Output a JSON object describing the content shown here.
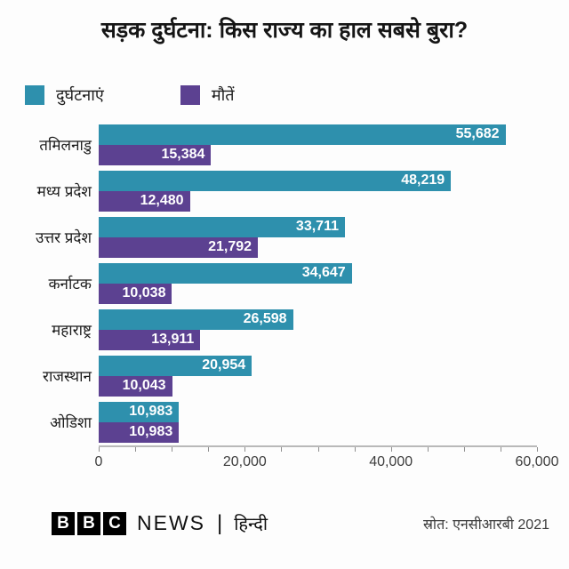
{
  "title": "सड़क दुर्घटना: किस राज्य का हाल सबसे बुरा?",
  "legend": [
    {
      "label": "दुर्घटनाएं",
      "color": "#2e90ad"
    },
    {
      "label": "मौतें",
      "color": "#5c4191"
    }
  ],
  "chart_data": {
    "type": "bar",
    "orientation": "horizontal",
    "title": "सड़क दुर्घटना: किस राज्य का हाल सबसे बुरा?",
    "categories": [
      "तमिलनाडु",
      "मध्य प्रदेश",
      "उत्तर प्रदेश",
      "कर्नाटक",
      "महाराष्ट्र",
      "राजस्थान",
      "ओडिशा"
    ],
    "series": [
      {
        "name": "दुर्घटनाएं",
        "color": "#2e90ad",
        "values": [
          55682,
          48219,
          33711,
          34647,
          26598,
          20954,
          10983
        ],
        "labels": [
          "55,682",
          "48,219",
          "33,711",
          "34,647",
          "26,598",
          "20,954",
          "10,983"
        ]
      },
      {
        "name": "मौतें",
        "color": "#5c4191",
        "values": [
          15384,
          12480,
          21792,
          10038,
          13911,
          10043,
          10983
        ],
        "labels": [
          "15,384",
          "12,480",
          "21,792",
          "10,038",
          "13,911",
          "10,043",
          "10,983"
        ]
      }
    ],
    "xlim": [
      0,
      60000
    ],
    "x_ticks": [
      0,
      20000,
      40000,
      60000
    ],
    "x_tick_labels": [
      "0",
      "20,000",
      "40,000",
      "60,000"
    ],
    "minor_tick_step": 5000,
    "grid": false,
    "legend_position": "top",
    "value_labels": "inside-end",
    "xlabel": "",
    "ylabel": ""
  },
  "footer": {
    "logo_letters": [
      "B",
      "B",
      "C"
    ],
    "brand": "NEWS",
    "separator": "|",
    "language": "हिन्दी",
    "source": "स्रोत: एनसीआरबी 2021"
  }
}
